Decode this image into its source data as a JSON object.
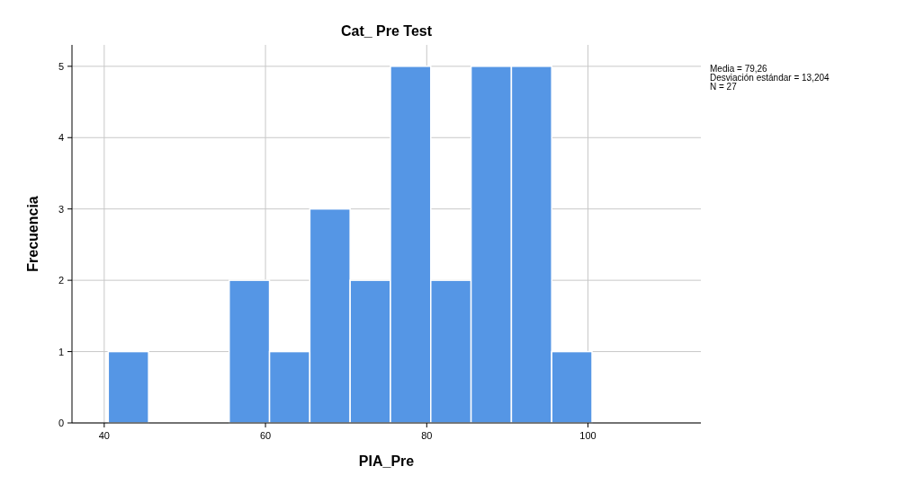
{
  "chart_data": {
    "type": "histogram",
    "title": "Cat_ Pre Test",
    "xlabel": "PIA_Pre",
    "ylabel": "Frecuencia",
    "bins": [
      40.5,
      45.5,
      50.5,
      55.5,
      60.5,
      65.5,
      70.5,
      75.5,
      80.5,
      85.5,
      90.5,
      95.5,
      100.5
    ],
    "values": [
      1,
      0,
      0,
      2,
      1,
      3,
      2,
      5,
      2,
      5,
      5,
      1
    ],
    "color": "#5596e5",
    "xlim": [
      36,
      114
    ],
    "xticks": [
      40,
      60,
      80,
      100
    ],
    "ylim": [
      0,
      5.3
    ],
    "yticks": [
      0,
      1,
      2,
      3,
      4,
      5
    ],
    "grid": true,
    "annotations": [
      "Media = 79,26",
      "Desviación estándar = 13,204",
      "N = 27"
    ]
  }
}
